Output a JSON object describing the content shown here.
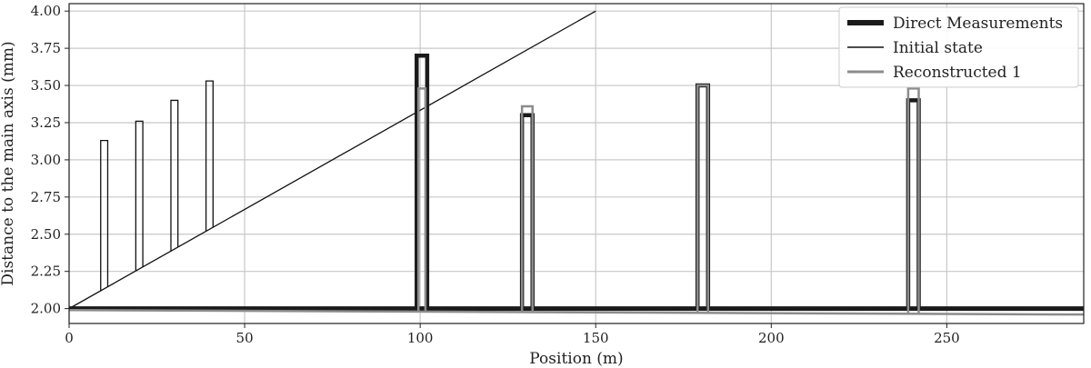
{
  "chart_data": {
    "type": "line",
    "xlabel": "Position (m)",
    "ylabel": "Distance to the main axis (mm)",
    "xlim": [
      0,
      289
    ],
    "ylim": [
      1.9,
      4.05
    ],
    "xticks": [
      0,
      50,
      100,
      150,
      200,
      250
    ],
    "yticks": [
      2.0,
      2.25,
      2.5,
      2.75,
      3.0,
      3.25,
      3.5,
      3.75,
      4.0
    ],
    "grid": true,
    "legend_position": "top-right",
    "series": [
      {
        "name": "Direct Measurements",
        "color": "#1a1a1a",
        "baseline": [
          [
            0,
            2.0
          ],
          [
            289,
            2.0
          ]
        ],
        "peaks": [
          {
            "x0": 99,
            "x1": 102,
            "y": 3.7
          },
          {
            "x0": 129,
            "x1": 132,
            "y": 3.3
          },
          {
            "x0": 179,
            "x1": 182,
            "y": 3.5
          },
          {
            "x0": 239,
            "x1": 242,
            "y": 3.4
          }
        ]
      },
      {
        "name": "Initial state",
        "color": "#111111",
        "line": [
          [
            0,
            2.0
          ],
          [
            150,
            4.0
          ]
        ],
        "peaks": [
          {
            "x0": 9,
            "x1": 11,
            "y": 3.13
          },
          {
            "x0": 19,
            "x1": 21,
            "y": 3.26
          },
          {
            "x0": 29,
            "x1": 31,
            "y": 3.4
          },
          {
            "x0": 39,
            "x1": 41,
            "y": 3.53
          }
        ]
      },
      {
        "name": "Reconstructed 1",
        "color": "#8c8c8c",
        "baseline": [
          [
            0,
            1.99
          ],
          [
            289,
            1.96
          ]
        ],
        "peaks": [
          {
            "x0": 99.5,
            "x1": 101.5,
            "y": 3.48
          },
          {
            "x0": 129,
            "x1": 132,
            "y": 3.36
          },
          {
            "x0": 179,
            "x1": 182,
            "y": 3.5
          },
          {
            "x0": 239,
            "x1": 242,
            "y": 3.48
          }
        ]
      }
    ]
  }
}
